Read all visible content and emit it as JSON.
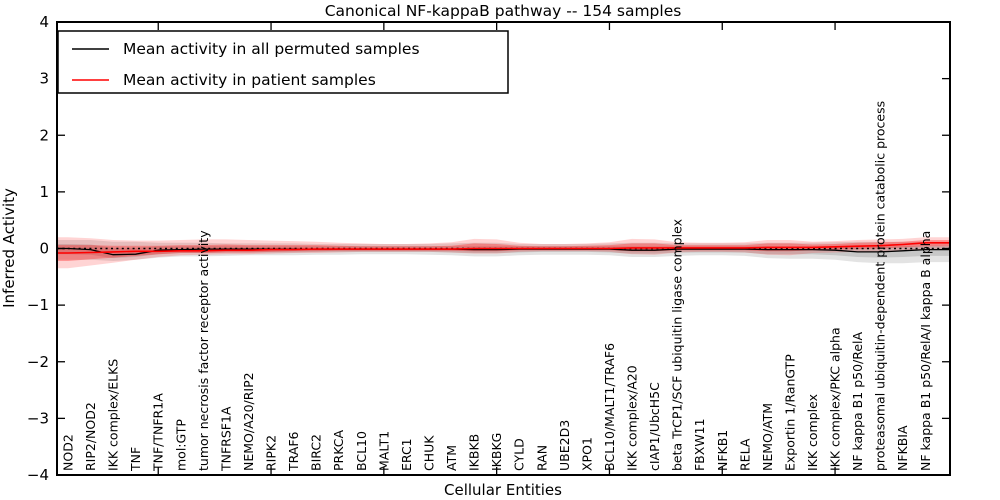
{
  "title": "Canonical NF-kappaB pathway -- 154 samples",
  "legend": {
    "permuted_label": "Mean activity in all permuted samples",
    "patient_label": "Mean activity in patient samples"
  },
  "colors": {
    "permuted_line": "#000000",
    "patient_line": "#ff0000",
    "zero_line": "#000000",
    "permuted_band_outer": "rgba(100,100,100,0.18)",
    "permuted_band_inner": "rgba(100,100,100,0.22)",
    "patient_band_outer": "rgba(255,0,0,0.17)",
    "patient_band_inner": "rgba(255,0,0,0.30)",
    "background": "#ffffff"
  },
  "chart_data": {
    "type": "line",
    "title": "Canonical NF-kappaB pathway -- 154 samples",
    "xlabel": "Cellular Entities",
    "ylabel": "Inferred Activity",
    "ylim": [
      -4,
      4
    ],
    "yticks": [
      4,
      3,
      2,
      1,
      0,
      -1,
      -2,
      -3,
      -4
    ],
    "ytick_labels": [
      "4",
      "3",
      "2",
      "1",
      "0",
      "−1",
      "−2",
      "−3",
      "−4"
    ],
    "x_major_ticks": [
      5,
      10,
      15,
      20,
      25,
      30,
      35
    ],
    "grid": false,
    "legend_position": "upper left",
    "categories": [
      "NOD2",
      "RIP2/NOD2",
      "IKK complex/ELKS",
      "TNF",
      "TNF/TNFR1A",
      "mol:GTP",
      "tumor necrosis factor receptor activity",
      "TNFRSF1A",
      "NEMO/A20/RIP2",
      "RIPK2",
      "TRAF6",
      "BIRC2",
      "PRKCA",
      "BCL10",
      "MALT1",
      "ERC1",
      "CHUK",
      "ATM",
      "IKBKB",
      "IKBKG",
      "CYLD",
      "RAN",
      "UBE2D3",
      "XPO1",
      "BCL10/MALT1/TRAF6",
      "IKK complex/A20",
      "cIAP1/UbcH5C",
      "beta TrCP1/SCF ubiquitin ligase complex",
      "FBXW11",
      "NFKB1",
      "RELA",
      "NEMO/ATM",
      "Exportin 1/RanGTP",
      "IKK complex",
      "IKK complex/PKC alpha",
      "NF kappa B1 p50/RelA",
      "proteasomal ubiquitin-dependent protein catabolic process",
      "NFKBIA",
      "NF kappa B1 p50/RelA/I kappa B alpha"
    ],
    "series": [
      {
        "name": "Mean activity in all permuted samples",
        "color": "#000000",
        "values": [
          0.0,
          -0.02,
          -0.11,
          -0.1,
          -0.03,
          -0.02,
          -0.01,
          -0.01,
          -0.01,
          -0.01,
          -0.01,
          -0.01,
          -0.01,
          -0.01,
          -0.01,
          -0.01,
          -0.01,
          -0.01,
          -0.02,
          -0.02,
          -0.01,
          -0.01,
          -0.01,
          -0.01,
          -0.01,
          -0.03,
          -0.03,
          -0.01,
          -0.01,
          -0.01,
          -0.01,
          -0.02,
          -0.02,
          -0.02,
          -0.03,
          -0.06,
          -0.06,
          -0.04,
          -0.02
        ]
      },
      {
        "name": "Mean activity in patient samples",
        "color": "#ff0000",
        "values": [
          -0.08,
          -0.07,
          -0.06,
          -0.05,
          -0.05,
          -0.04,
          -0.04,
          -0.03,
          -0.03,
          -0.02,
          -0.02,
          -0.01,
          -0.01,
          -0.01,
          -0.01,
          -0.01,
          -0.01,
          -0.01,
          0.0,
          0.0,
          0.0,
          0.0,
          0.0,
          0.0,
          0.0,
          0.01,
          0.01,
          0.01,
          0.01,
          0.01,
          0.01,
          0.02,
          0.02,
          0.02,
          0.03,
          0.04,
          0.05,
          0.07,
          0.1
        ]
      }
    ],
    "zero_line": 0,
    "bands": [
      {
        "name": "permuted-band-outer",
        "lo": [
          -0.2,
          -0.2,
          -0.22,
          -0.2,
          -0.16,
          -0.14,
          -0.14,
          -0.13,
          -0.12,
          -0.12,
          -0.12,
          -0.11,
          -0.11,
          -0.1,
          -0.1,
          -0.1,
          -0.11,
          -0.12,
          -0.14,
          -0.14,
          -0.12,
          -0.11,
          -0.11,
          -0.11,
          -0.12,
          -0.15,
          -0.15,
          -0.13,
          -0.12,
          -0.12,
          -0.13,
          -0.17,
          -0.18,
          -0.18,
          -0.2,
          -0.24,
          -0.26,
          -0.26,
          -0.24
        ],
        "hi": [
          0.15,
          0.15,
          0.12,
          0.12,
          0.1,
          0.1,
          0.1,
          0.09,
          0.09,
          0.09,
          0.09,
          0.08,
          0.08,
          0.08,
          0.08,
          0.08,
          0.08,
          0.09,
          0.1,
          0.1,
          0.08,
          0.08,
          0.08,
          0.08,
          0.09,
          0.1,
          0.1,
          0.09,
          0.09,
          0.09,
          0.09,
          0.1,
          0.1,
          0.1,
          0.11,
          0.12,
          0.12,
          0.12,
          0.12
        ]
      },
      {
        "name": "permuted-band-inner",
        "lo": [
          -0.1,
          -0.11,
          -0.17,
          -0.15,
          -0.1,
          -0.08,
          -0.08,
          -0.07,
          -0.07,
          -0.07,
          -0.07,
          -0.06,
          -0.06,
          -0.06,
          -0.06,
          -0.06,
          -0.06,
          -0.07,
          -0.08,
          -0.08,
          -0.07,
          -0.06,
          -0.06,
          -0.06,
          -0.07,
          -0.09,
          -0.09,
          -0.07,
          -0.07,
          -0.07,
          -0.07,
          -0.1,
          -0.1,
          -0.1,
          -0.12,
          -0.15,
          -0.16,
          -0.15,
          -0.13
        ],
        "hi": [
          0.08,
          0.07,
          0.01,
          0.01,
          0.04,
          0.04,
          0.05,
          0.04,
          0.04,
          0.04,
          0.04,
          0.04,
          0.04,
          0.04,
          0.04,
          0.04,
          0.04,
          0.04,
          0.04,
          0.04,
          0.04,
          0.04,
          0.04,
          0.04,
          0.04,
          0.04,
          0.04,
          0.04,
          0.04,
          0.04,
          0.04,
          0.04,
          0.04,
          0.04,
          0.04,
          0.03,
          0.03,
          0.04,
          0.05
        ]
      },
      {
        "name": "patient-band-outer",
        "lo": [
          -0.35,
          -0.3,
          -0.25,
          -0.2,
          -0.15,
          -0.12,
          -0.11,
          -0.1,
          -0.1,
          -0.09,
          -0.08,
          -0.08,
          -0.07,
          -0.06,
          -0.06,
          -0.06,
          -0.06,
          -0.07,
          -0.09,
          -0.09,
          -0.06,
          -0.05,
          -0.05,
          -0.05,
          -0.06,
          -0.1,
          -0.11,
          -0.07,
          -0.06,
          -0.06,
          -0.07,
          -0.11,
          -0.12,
          -0.08,
          -0.07,
          -0.06,
          -0.05,
          -0.03,
          -0.02
        ],
        "hi": [
          0.2,
          0.18,
          0.15,
          0.14,
          0.14,
          0.15,
          0.16,
          0.16,
          0.15,
          0.14,
          0.13,
          0.12,
          0.1,
          0.09,
          0.08,
          0.08,
          0.09,
          0.11,
          0.17,
          0.16,
          0.1,
          0.08,
          0.08,
          0.09,
          0.11,
          0.17,
          0.16,
          0.11,
          0.1,
          0.1,
          0.11,
          0.15,
          0.15,
          0.12,
          0.13,
          0.15,
          0.16,
          0.17,
          0.2
        ]
      },
      {
        "name": "patient-band-inner",
        "lo": [
          -0.22,
          -0.19,
          -0.16,
          -0.13,
          -0.1,
          -0.08,
          -0.08,
          -0.07,
          -0.07,
          -0.06,
          -0.05,
          -0.05,
          -0.04,
          -0.04,
          -0.04,
          -0.04,
          -0.04,
          -0.04,
          -0.05,
          -0.05,
          -0.03,
          -0.03,
          -0.03,
          -0.03,
          -0.03,
          -0.05,
          -0.05,
          -0.03,
          -0.03,
          -0.03,
          -0.03,
          -0.05,
          -0.05,
          -0.03,
          -0.02,
          -0.01,
          0.0,
          0.02,
          0.04
        ],
        "hi": [
          0.06,
          0.06,
          0.05,
          0.05,
          0.05,
          0.06,
          0.06,
          0.07,
          0.06,
          0.06,
          0.06,
          0.06,
          0.05,
          0.04,
          0.04,
          0.04,
          0.04,
          0.05,
          0.09,
          0.08,
          0.05,
          0.04,
          0.04,
          0.05,
          0.06,
          0.09,
          0.09,
          0.06,
          0.06,
          0.06,
          0.06,
          0.09,
          0.09,
          0.07,
          0.08,
          0.1,
          0.11,
          0.12,
          0.15
        ]
      }
    ]
  }
}
